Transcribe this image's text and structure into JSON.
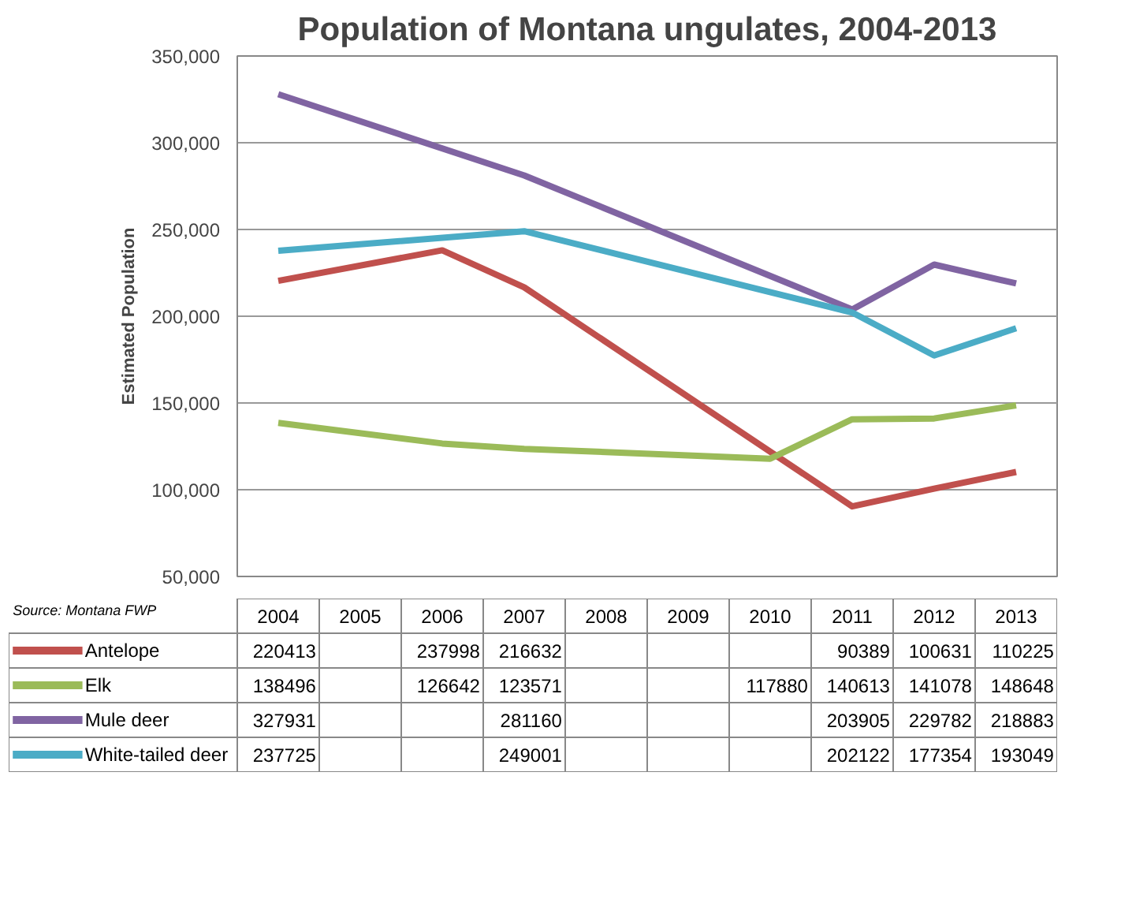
{
  "chart_data": {
    "type": "line",
    "title": "Population of Montana ungulates, 2004-2013",
    "ylabel": "Estimated Population",
    "categories": [
      "2004",
      "2005",
      "2006",
      "2007",
      "2008",
      "2009",
      "2010",
      "2011",
      "2012",
      "2013"
    ],
    "ylim": [
      50000,
      350000
    ],
    "yticks": [
      {
        "value": 50000,
        "label": "50,000"
      },
      {
        "value": 100000,
        "label": "100,000"
      },
      {
        "value": 150000,
        "label": "150,000"
      },
      {
        "value": 200000,
        "label": "200,000"
      },
      {
        "value": 250000,
        "label": "250,000"
      },
      {
        "value": 300000,
        "label": "300,000"
      },
      {
        "value": 350000,
        "label": "350,000"
      }
    ],
    "grid": "y",
    "legend": "bottom",
    "data_labels": true,
    "annotations": [
      "Source: Montana FWP"
    ],
    "series": [
      {
        "name": "Antelope",
        "color": "#c0504d",
        "values": [
          220413,
          null,
          237998,
          216632,
          null,
          null,
          null,
          90389,
          100631,
          110225
        ]
      },
      {
        "name": "Elk",
        "color": "#9bbb59",
        "values": [
          138496,
          null,
          126642,
          123571,
          null,
          null,
          117880,
          140613,
          141078,
          148648
        ]
      },
      {
        "name": "Mule deer",
        "color": "#8064a2",
        "values": [
          327931,
          null,
          null,
          281160,
          null,
          null,
          null,
          203905,
          229782,
          218883
        ]
      },
      {
        "name": "White-tailed deer",
        "color": "#4bacc6",
        "values": [
          237725,
          null,
          null,
          249001,
          null,
          null,
          null,
          202122,
          177354,
          193049
        ]
      }
    ]
  }
}
